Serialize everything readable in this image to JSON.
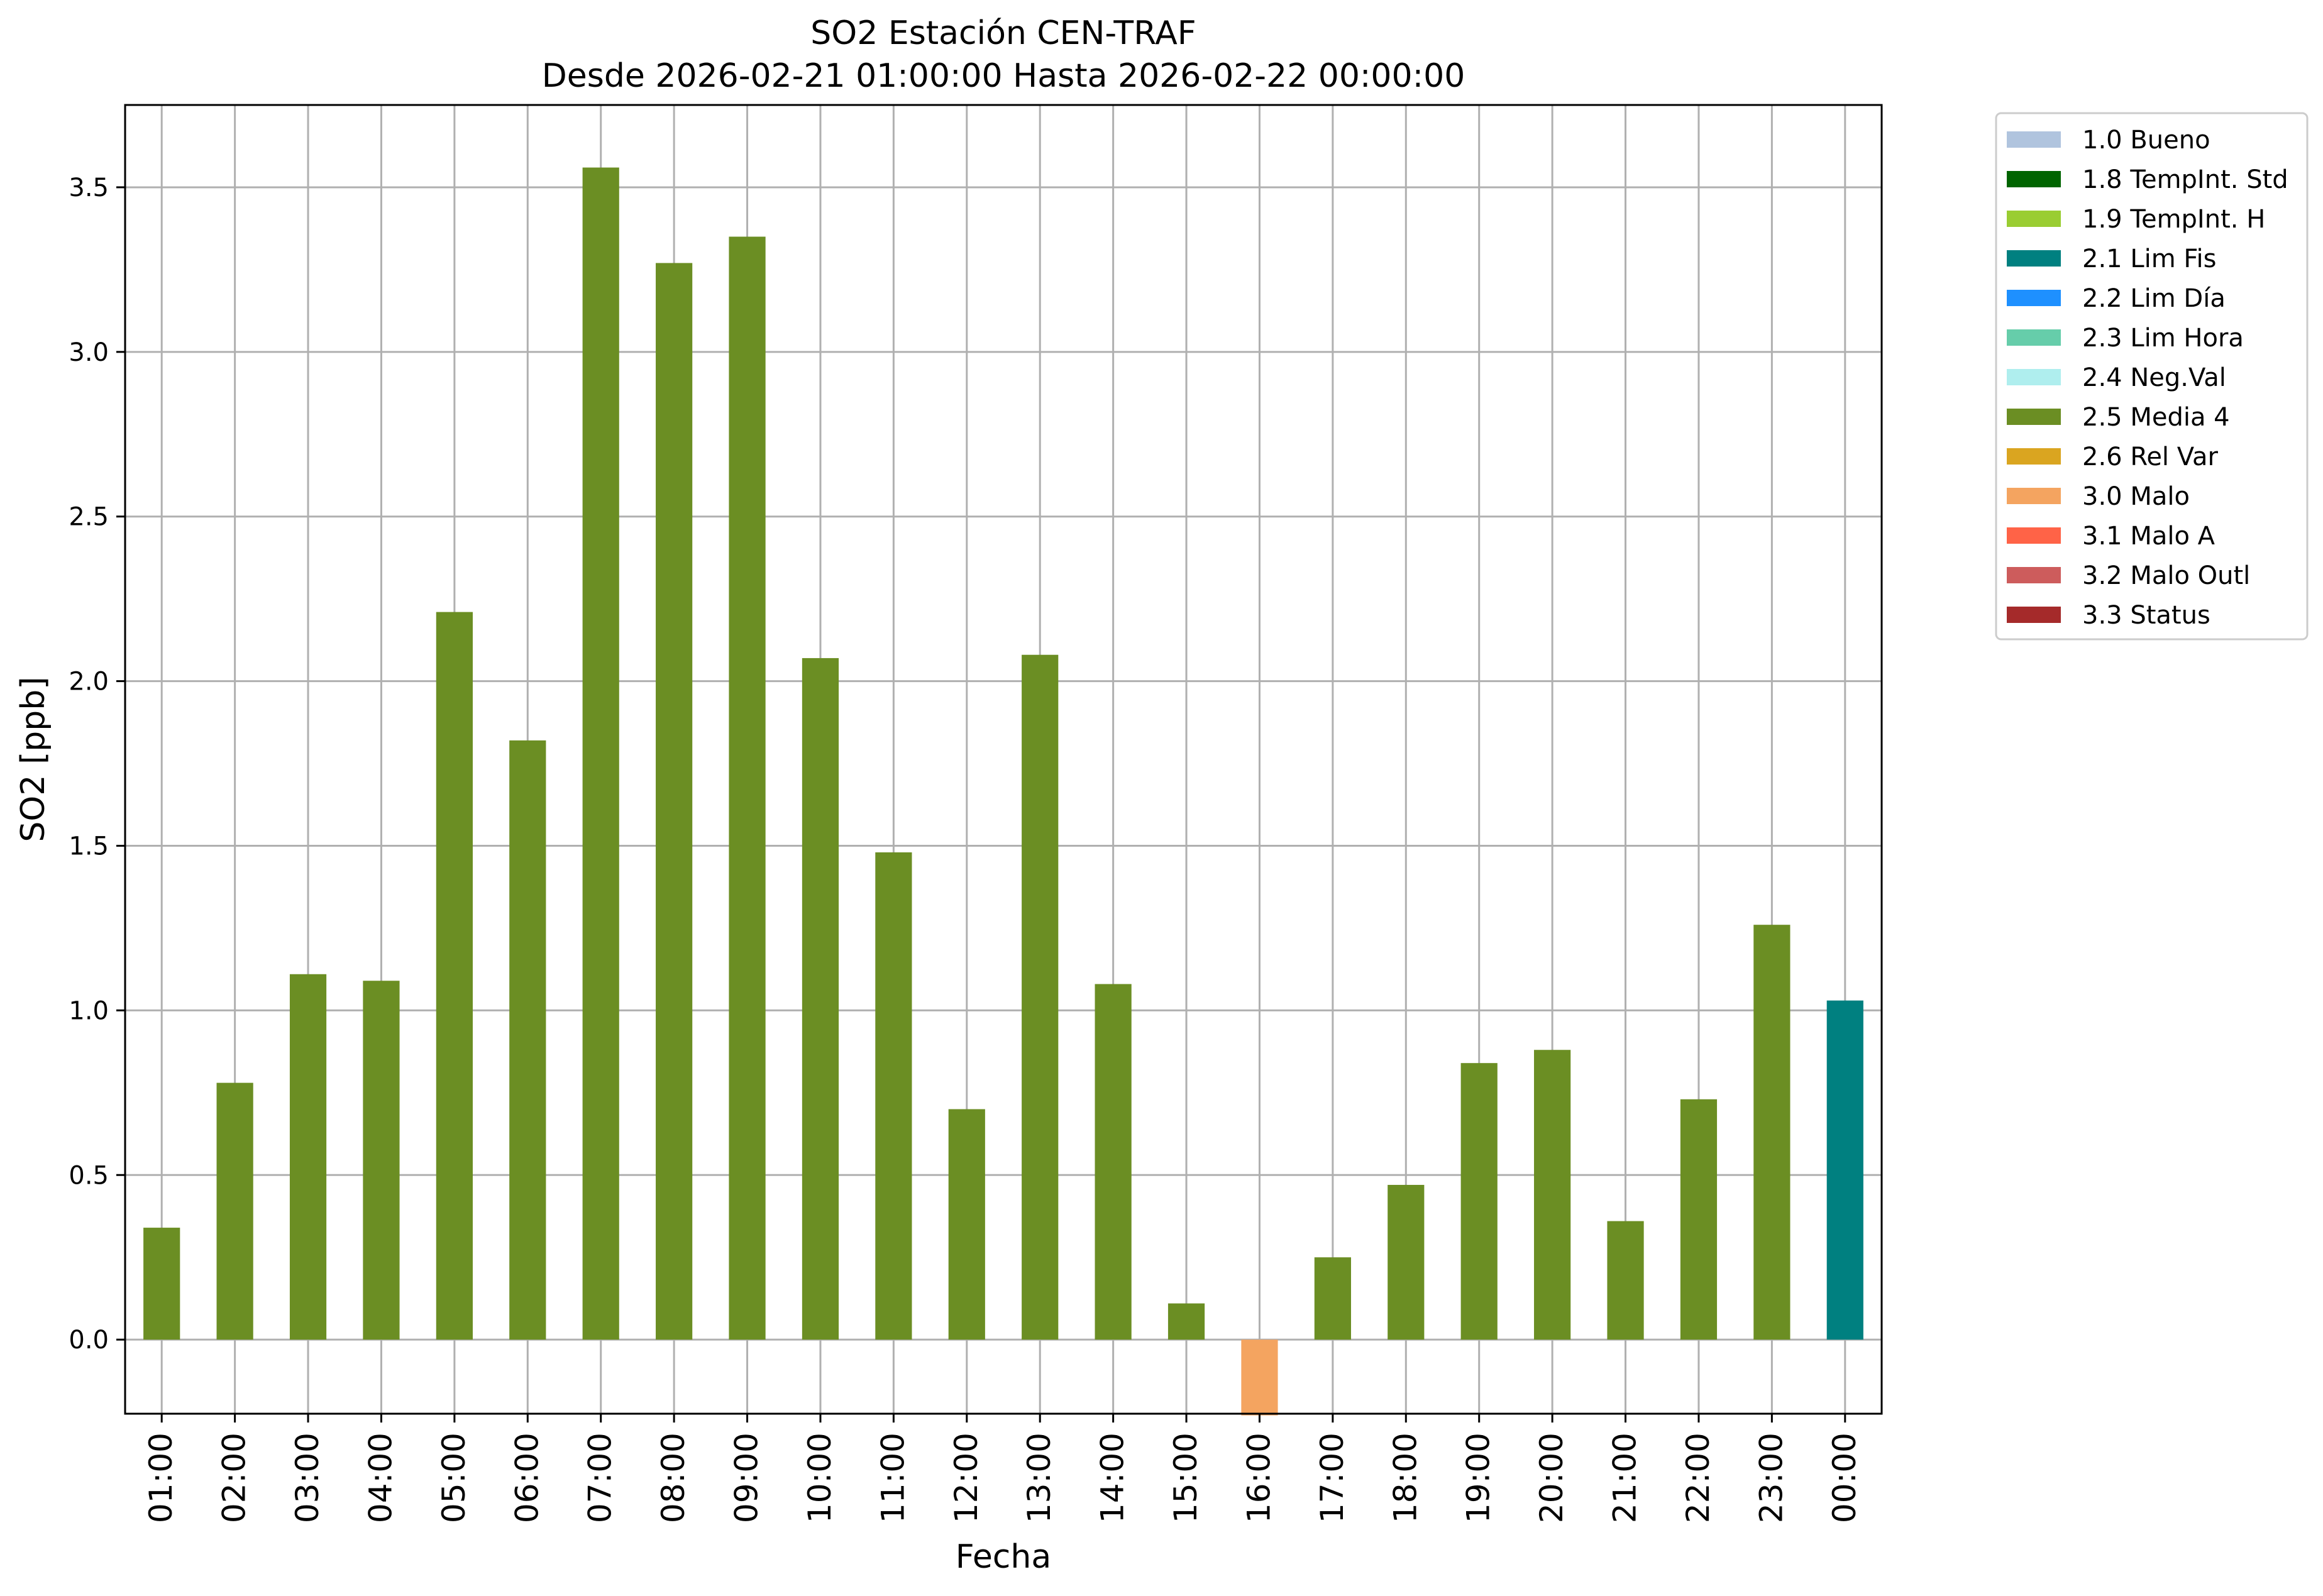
{
  "chart_data": {
    "type": "bar",
    "title": "SO2 Estación CEN-TRAF",
    "subtitle": "Desde 2026-02-21 01:00:00 Hasta 2026-02-22 00:00:00",
    "xlabel": "Fecha",
    "ylabel": "SO2 [ppb]",
    "ylim": [
      -0.225,
      3.75
    ],
    "yticks": [
      "0.0",
      "0.5",
      "1.0",
      "1.5",
      "2.0",
      "2.5",
      "3.0",
      "3.5"
    ],
    "grid": true,
    "legend_position": "outside-right",
    "categories": [
      "01:00",
      "02:00",
      "03:00",
      "04:00",
      "05:00",
      "06:00",
      "07:00",
      "08:00",
      "09:00",
      "10:00",
      "11:00",
      "12:00",
      "13:00",
      "14:00",
      "15:00",
      "16:00",
      "17:00",
      "18:00",
      "19:00",
      "20:00",
      "21:00",
      "22:00",
      "23:00",
      "00:00"
    ],
    "values": [
      0.34,
      0.78,
      1.11,
      1.09,
      2.21,
      1.82,
      3.56,
      3.27,
      3.35,
      2.07,
      1.48,
      0.7,
      2.08,
      1.08,
      0.11,
      -0.23,
      0.25,
      0.47,
      0.84,
      0.88,
      0.36,
      0.73,
      1.26,
      1.03
    ],
    "flags": [
      "2.5",
      "2.5",
      "2.5",
      "2.5",
      "2.5",
      "2.5",
      "2.5",
      "2.5",
      "2.5",
      "2.5",
      "2.5",
      "2.5",
      "2.5",
      "2.5",
      "2.5",
      "3.0",
      "2.5",
      "2.5",
      "2.5",
      "2.5",
      "2.5",
      "2.5",
      "2.5",
      "2.1"
    ],
    "legend": [
      {
        "code": "1.0",
        "label": "1.0 Bueno",
        "color": "#b0c4de"
      },
      {
        "code": "1.8",
        "label": "1.8 TempInt. Std",
        "color": "#006400"
      },
      {
        "code": "1.9",
        "label": "1.9 TempInt. H",
        "color": "#9acd32"
      },
      {
        "code": "2.1",
        "label": "2.1 Lim Fis",
        "color": "#008080"
      },
      {
        "code": "2.2",
        "label": "2.2 Lim Día",
        "color": "#1e90ff"
      },
      {
        "code": "2.3",
        "label": "2.3 Lim Hora",
        "color": "#66cdaa"
      },
      {
        "code": "2.4",
        "label": "2.4 Neg.Val",
        "color": "#afeeee"
      },
      {
        "code": "2.5",
        "label": "2.5 Media 4",
        "color": "#6b8e23"
      },
      {
        "code": "2.6",
        "label": "2.6 Rel Var",
        "color": "#daa520"
      },
      {
        "code": "3.0",
        "label": "3.0 Malo",
        "color": "#f4a460"
      },
      {
        "code": "3.1",
        "label": "3.1 Malo A",
        "color": "#ff6347"
      },
      {
        "code": "3.2",
        "label": "3.2 Malo Outl",
        "color": "#cd5c5c"
      },
      {
        "code": "3.3",
        "label": "3.3 Status",
        "color": "#a52a2a"
      }
    ]
  }
}
